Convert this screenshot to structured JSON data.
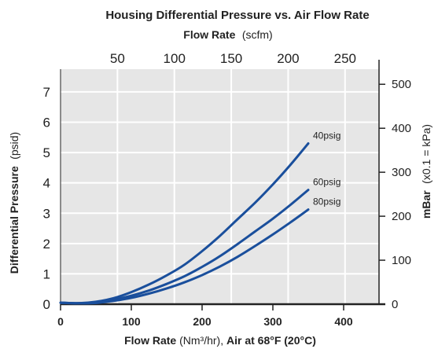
{
  "chart_data": {
    "type": "line",
    "title": "Housing Differential Pressure vs. Air Flow Rate",
    "top_axis": {
      "label_bold": "Flow Rate",
      "label_unit": "(scfm)",
      "ticks": [
        50,
        100,
        150,
        200,
        250
      ]
    },
    "bottom_axis": {
      "label_parts": [
        {
          "text": "Flow Rate",
          "bold": true
        },
        {
          "text": " (Nm³/hr), ",
          "bold": false
        },
        {
          "text": "Air at 68°F (20°C)",
          "bold": true
        }
      ],
      "ticks": [
        0,
        100,
        200,
        300,
        400
      ],
      "range": [
        0,
        450
      ]
    },
    "left_axis": {
      "label_bold": "Differential Pressure",
      "label_unit": "(psid)",
      "ticks": [
        0,
        1,
        2,
        3,
        4,
        5,
        6,
        7
      ],
      "range": [
        0,
        7.75
      ]
    },
    "right_axis": {
      "label_bold": "mBar",
      "label_unit": "(x0.1 = kPa)",
      "ticks": [
        0,
        100,
        200,
        300,
        400,
        500
      ]
    },
    "colors": {
      "line": "#1a4f9c",
      "plot_bg": "#e6e6e6",
      "grid": "#ffffff",
      "axis": "#222222"
    },
    "series": [
      {
        "name": "40psig",
        "x": [
          0,
          25,
          50,
          75,
          100,
          125,
          150,
          175,
          200,
          225,
          250,
          275,
          300,
          325,
          350
        ],
        "y": [
          0.05,
          0.03,
          0.08,
          0.2,
          0.4,
          0.65,
          0.95,
          1.3,
          1.75,
          2.25,
          2.8,
          3.35,
          3.95,
          4.6,
          5.3
        ]
      },
      {
        "name": "60psig",
        "x": [
          0,
          25,
          50,
          75,
          100,
          125,
          150,
          175,
          200,
          225,
          250,
          275,
          300,
          325,
          350
        ],
        "y": [
          0.05,
          0.03,
          0.06,
          0.15,
          0.28,
          0.45,
          0.67,
          0.92,
          1.23,
          1.58,
          1.98,
          2.4,
          2.82,
          3.28,
          3.77
        ]
      },
      {
        "name": "80psig",
        "x": [
          0,
          25,
          50,
          75,
          100,
          125,
          150,
          175,
          200,
          225,
          250,
          275,
          300,
          325,
          350
        ],
        "y": [
          0.05,
          0.03,
          0.04,
          0.11,
          0.21,
          0.35,
          0.52,
          0.72,
          0.96,
          1.24,
          1.56,
          1.92,
          2.3,
          2.7,
          3.12
        ]
      }
    ]
  }
}
